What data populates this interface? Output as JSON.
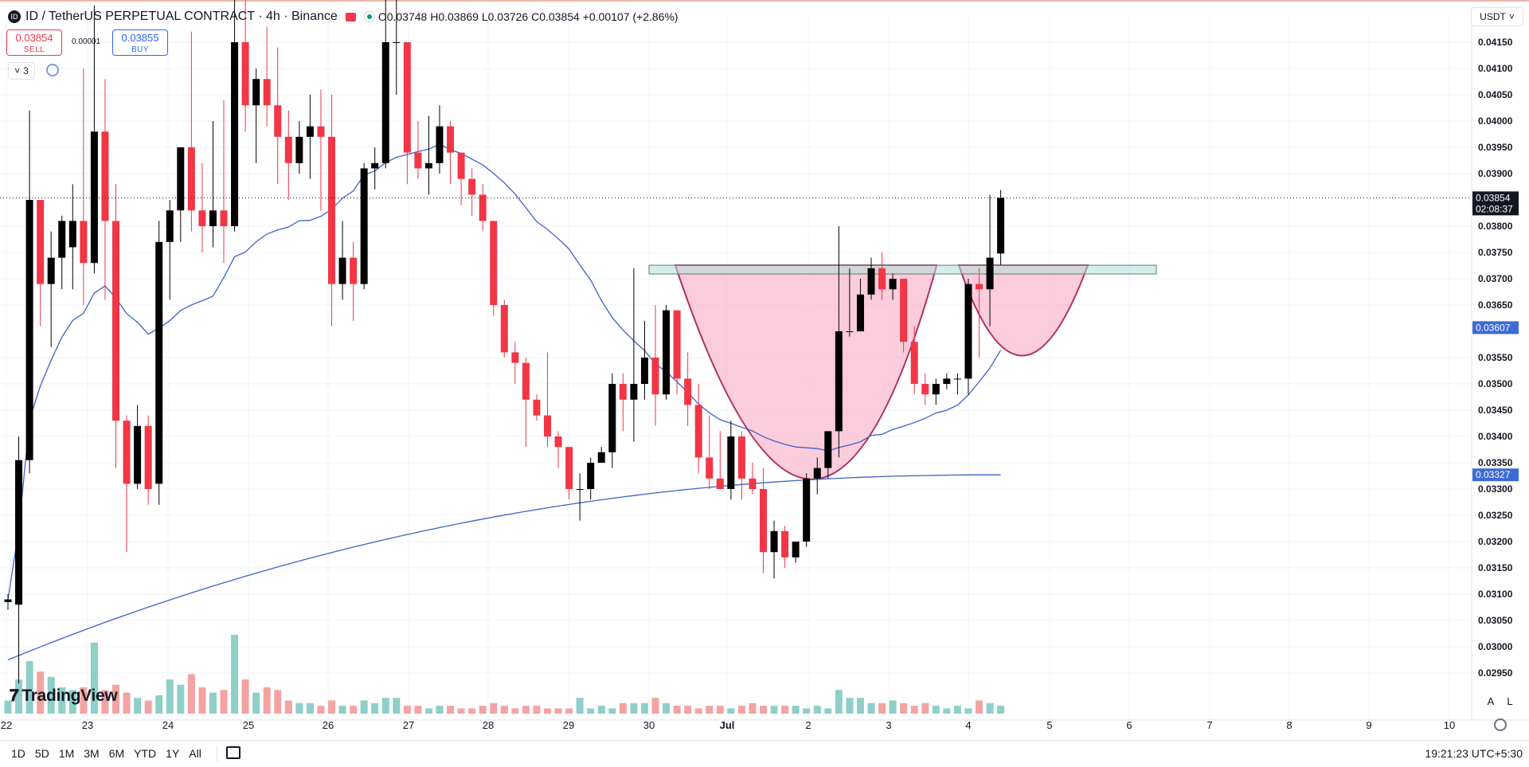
{
  "header": {
    "symbol": "ID / TetherUS PERPETUAL CONTRACT · 4h · Binance",
    "ohlc": "O0.03748 H0.03869 L0.03726 C0.03854 +0.00107 (+2.86%)",
    "currency": "USDT",
    "sell": {
      "price": "0.03854",
      "label": "SELL"
    },
    "buy": {
      "price": "0.03855",
      "label": "BUY"
    },
    "spread": "0.00001",
    "indicators_count": "3"
  },
  "branding": "TradingView",
  "scale_buttons": [
    "A",
    "L"
  ],
  "ranges": [
    "1D",
    "5D",
    "1M",
    "3M",
    "6M",
    "YTD",
    "1Y",
    "All"
  ],
  "clock": "19:21:23 UTC+5:30",
  "colors": {
    "up": "#000000",
    "down": "#f23645",
    "vol_up": "#8ecfc9",
    "vol_down": "#f4a3a3",
    "ma_fast": "#3d63c8",
    "ma_slow": "#3d63c8",
    "cup": "#f8bbd0",
    "cup_stroke": "#b0305e",
    "resistance": "#b2dfdb"
  },
  "chart_data": {
    "type": "candlestick",
    "timeframe": "4h",
    "y_axis": {
      "ticks": [
        "0.04150",
        "0.04100",
        "0.04050",
        "0.04000",
        "0.03950",
        "0.03900",
        "0.03800",
        "0.03750",
        "0.03700",
        "0.03650",
        "0.03550",
        "0.03500",
        "0.03450",
        "0.03400",
        "0.03350",
        "0.03300",
        "0.03250",
        "0.03200",
        "0.03150",
        "0.03100",
        "0.03050",
        "0.03000",
        "0.02950"
      ],
      "range": [
        0.029,
        0.0418
      ]
    },
    "x_axis": {
      "ticks": [
        "22",
        "23",
        "24",
        "25",
        "26",
        "27",
        "28",
        "29",
        "30",
        "Jul",
        "2",
        "3",
        "4",
        "5",
        "6",
        "7",
        "8",
        "9",
        "10"
      ]
    },
    "last_price": {
      "value": "0.03854",
      "countdown": "02:08:37"
    },
    "ma_fast_label": "0.03607",
    "ma_slow_label": "0.03327",
    "candles": [
      [
        0.03085,
        0.031,
        0.0309,
        0.0307
      ],
      [
        0.0308,
        0.034,
        0.03355,
        0.0293
      ],
      [
        0.03355,
        0.0402,
        0.0385,
        0.0333
      ],
      [
        0.0385,
        0.0385,
        0.0369,
        0.0361
      ],
      [
        0.0369,
        0.0379,
        0.0374,
        0.0357
      ],
      [
        0.0374,
        0.0382,
        0.0381,
        0.0368
      ],
      [
        0.0376,
        0.0388,
        0.0381,
        0.0368
      ],
      [
        0.0381,
        0.041,
        0.0373,
        0.0365
      ],
      [
        0.0373,
        0.0422,
        0.0398,
        0.0371
      ],
      [
        0.0398,
        0.0408,
        0.0381,
        0.0366
      ],
      [
        0.0381,
        0.0388,
        0.0343,
        0.0334
      ],
      [
        0.0343,
        0.0344,
        0.0331,
        0.0318
      ],
      [
        0.0331,
        0.0346,
        0.0342,
        0.033
      ],
      [
        0.0342,
        0.0344,
        0.033,
        0.0327
      ],
      [
        0.0331,
        0.0381,
        0.0377,
        0.0327
      ],
      [
        0.0377,
        0.0385,
        0.0383,
        0.0366
      ],
      [
        0.0383,
        0.0391,
        0.0395,
        0.0377
      ],
      [
        0.0395,
        0.0417,
        0.0383,
        0.0379
      ],
      [
        0.0383,
        0.0392,
        0.038,
        0.0375
      ],
      [
        0.038,
        0.04,
        0.0383,
        0.0376
      ],
      [
        0.0383,
        0.0404,
        0.038,
        0.0373
      ],
      [
        0.038,
        0.0425,
        0.0415,
        0.0379
      ],
      [
        0.0415,
        0.0425,
        0.0403,
        0.0398
      ],
      [
        0.0403,
        0.041,
        0.0408,
        0.0392
      ],
      [
        0.0408,
        0.0418,
        0.0403,
        0.0399
      ],
      [
        0.0403,
        0.0414,
        0.0397,
        0.0388
      ],
      [
        0.0397,
        0.0402,
        0.0392,
        0.0385
      ],
      [
        0.0392,
        0.04,
        0.0397,
        0.039
      ],
      [
        0.0397,
        0.0405,
        0.0399,
        0.0389
      ],
      [
        0.0399,
        0.0406,
        0.0397,
        0.0383
      ],
      [
        0.0397,
        0.0405,
        0.0369,
        0.0361
      ],
      [
        0.0369,
        0.0381,
        0.0374,
        0.0366
      ],
      [
        0.0374,
        0.0377,
        0.0369,
        0.0362
      ],
      [
        0.0369,
        0.0392,
        0.0391,
        0.0368
      ],
      [
        0.0391,
        0.0395,
        0.0392,
        0.0387
      ],
      [
        0.0392,
        0.0425,
        0.0415,
        0.0391
      ],
      [
        0.0415,
        0.0425,
        0.0415,
        0.0405
      ],
      [
        0.0415,
        0.0412,
        0.0394,
        0.0388
      ],
      [
        0.0394,
        0.04,
        0.0391,
        0.0389
      ],
      [
        0.0391,
        0.0401,
        0.0392,
        0.0386
      ],
      [
        0.0392,
        0.0403,
        0.0399,
        0.039
      ],
      [
        0.0399,
        0.04,
        0.0394,
        0.0388
      ],
      [
        0.0394,
        0.0394,
        0.0389,
        0.0384
      ],
      [
        0.0389,
        0.0391,
        0.0386,
        0.0382
      ],
      [
        0.0386,
        0.0388,
        0.0381,
        0.0379
      ],
      [
        0.0381,
        0.0381,
        0.0365,
        0.0363
      ],
      [
        0.0365,
        0.0366,
        0.0356,
        0.0355
      ],
      [
        0.0356,
        0.0358,
        0.0354,
        0.035
      ],
      [
        0.0354,
        0.0355,
        0.0347,
        0.0338
      ],
      [
        0.0347,
        0.0348,
        0.0344,
        0.0343
      ],
      [
        0.0344,
        0.0356,
        0.034,
        0.0338
      ],
      [
        0.034,
        0.0341,
        0.0338,
        0.0334
      ],
      [
        0.0338,
        0.0338,
        0.033,
        0.0328
      ],
      [
        0.033,
        0.0333,
        0.033,
        0.0324
      ],
      [
        0.033,
        0.0336,
        0.0335,
        0.0328
      ],
      [
        0.0335,
        0.0338,
        0.0337,
        0.0335
      ],
      [
        0.0337,
        0.0352,
        0.035,
        0.0334
      ],
      [
        0.035,
        0.0352,
        0.0347,
        0.0341
      ],
      [
        0.0347,
        0.0372,
        0.035,
        0.0339
      ],
      [
        0.035,
        0.0362,
        0.0355,
        0.0347
      ],
      [
        0.0355,
        0.0365,
        0.0348,
        0.0342
      ],
      [
        0.0348,
        0.0365,
        0.0364,
        0.0347
      ],
      [
        0.0364,
        0.0364,
        0.0351,
        0.0348
      ],
      [
        0.0351,
        0.0356,
        0.0346,
        0.0342
      ],
      [
        0.0346,
        0.035,
        0.0336,
        0.0333
      ],
      [
        0.0336,
        0.0344,
        0.0332,
        0.033
      ],
      [
        0.0332,
        0.0341,
        0.033,
        0.033
      ],
      [
        0.033,
        0.0343,
        0.034,
        0.0328
      ],
      [
        0.034,
        0.0341,
        0.0332,
        0.0328
      ],
      [
        0.0332,
        0.0335,
        0.033,
        0.0329
      ],
      [
        0.033,
        0.0334,
        0.0318,
        0.0314
      ],
      [
        0.0318,
        0.0324,
        0.0322,
        0.0313
      ],
      [
        0.0322,
        0.0323,
        0.0317,
        0.0315
      ],
      [
        0.0317,
        0.032,
        0.032,
        0.0316
      ],
      [
        0.032,
        0.0333,
        0.0332,
        0.0319
      ],
      [
        0.0332,
        0.0336,
        0.0334,
        0.0329
      ],
      [
        0.0334,
        0.0338,
        0.0341,
        0.0332
      ],
      [
        0.0341,
        0.038,
        0.036,
        0.0336
      ],
      [
        0.036,
        0.0372,
        0.036,
        0.0359
      ],
      [
        0.036,
        0.037,
        0.0367,
        0.036
      ],
      [
        0.0367,
        0.0374,
        0.0372,
        0.0366
      ],
      [
        0.0372,
        0.0375,
        0.0368,
        0.0366
      ],
      [
        0.0368,
        0.0371,
        0.037,
        0.0366
      ],
      [
        0.037,
        0.037,
        0.0358,
        0.0356
      ],
      [
        0.0358,
        0.0361,
        0.035,
        0.0348
      ],
      [
        0.035,
        0.0352,
        0.0348,
        0.0346
      ],
      [
        0.0348,
        0.0351,
        0.035,
        0.0346
      ],
      [
        0.035,
        0.0352,
        0.0351,
        0.0349
      ],
      [
        0.0351,
        0.0352,
        0.0351,
        0.0348
      ],
      [
        0.0351,
        0.037,
        0.0369,
        0.0348
      ],
      [
        0.0369,
        0.0372,
        0.0368,
        0.0355
      ],
      [
        0.0368,
        0.0386,
        0.0374,
        0.0361
      ],
      [
        0.03748,
        0.03869,
        0.03854,
        0.03726
      ]
    ],
    "volume": [
      0.05,
      0.13,
      0.2,
      0.16,
      0.14,
      0.1,
      0.09,
      0.1,
      0.27,
      0.09,
      0.11,
      0.08,
      0.06,
      0.05,
      0.07,
      0.13,
      0.11,
      0.15,
      0.1,
      0.08,
      0.09,
      0.3,
      0.13,
      0.08,
      0.1,
      0.09,
      0.05,
      0.04,
      0.04,
      0.03,
      0.05,
      0.03,
      0.03,
      0.05,
      0.04,
      0.06,
      0.06,
      0.03,
      0.03,
      0.02,
      0.03,
      0.03,
      0.02,
      0.02,
      0.03,
      0.04,
      0.03,
      0.02,
      0.03,
      0.03,
      0.02,
      0.02,
      0.02,
      0.06,
      0.02,
      0.03,
      0.02,
      0.04,
      0.04,
      0.04,
      0.06,
      0.04,
      0.03,
      0.03,
      0.02,
      0.03,
      0.03,
      0.02,
      0.03,
      0.04,
      0.03,
      0.03,
      0.03,
      0.03,
      0.02,
      0.03,
      0.02,
      0.09,
      0.06,
      0.06,
      0.04,
      0.04,
      0.05,
      0.04,
      0.03,
      0.04,
      0.03,
      0.02,
      0.03,
      0.02,
      0.05,
      0.04,
      0.03
    ]
  }
}
